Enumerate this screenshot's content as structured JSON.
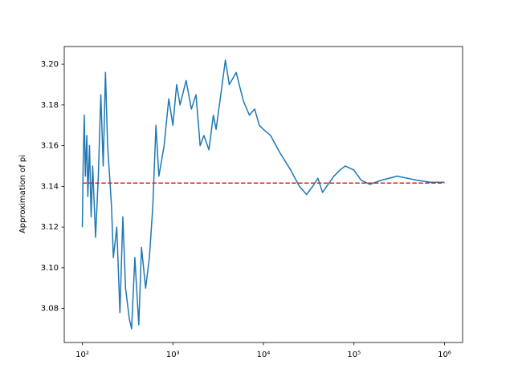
{
  "chart_data": {
    "type": "line",
    "ylabel": "Approximation of pi",
    "xscale": "log",
    "xlim": [
      63.1,
      1585000
    ],
    "xticks": [
      {
        "value": 100,
        "label": "10²"
      },
      {
        "value": 1000,
        "label": "10³"
      },
      {
        "value": 10000,
        "label": "10⁴"
      },
      {
        "value": 100000,
        "label": "10⁵"
      },
      {
        "value": 1000000,
        "label": "10⁶"
      }
    ],
    "ylim": [
      3.0633,
      3.2087
    ],
    "yticks": [
      3.08,
      {
        "value": 3.1,
        "label": "3.10"
      },
      3.12,
      3.14,
      3.16,
      3.18,
      {
        "value": 3.2,
        "label": "3.20"
      }
    ],
    "series": [
      {
        "color": "#1f77b4",
        "linestyle": "solid",
        "x": [
          100,
          102,
          105,
          108,
          112,
          115,
          120,
          125,
          130,
          140,
          150,
          160,
          170,
          180,
          190,
          200,
          210,
          220,
          240,
          260,
          280,
          300,
          330,
          350,
          380,
          420,
          450,
          500,
          550,
          600,
          650,
          700,
          800,
          900,
          1000,
          1100,
          1200,
          1400,
          1600,
          1800,
          2000,
          2200,
          2500,
          2800,
          3000,
          3500,
          3800,
          4200,
          5000,
          6000,
          7000,
          8000,
          9000,
          10000,
          12000,
          15000,
          20000,
          25000,
          30000,
          35000,
          40000,
          45000,
          50000,
          60000,
          70000,
          80000,
          100000,
          120000,
          150000,
          200000,
          300000,
          500000,
          700000,
          1000000
        ],
        "values": [
          3.12,
          3.15,
          3.175,
          3.145,
          3.165,
          3.135,
          3.16,
          3.125,
          3.15,
          3.115,
          3.145,
          3.185,
          3.15,
          3.196,
          3.16,
          3.145,
          3.13,
          3.105,
          3.12,
          3.078,
          3.125,
          3.09,
          3.075,
          3.07,
          3.105,
          3.072,
          3.11,
          3.09,
          3.105,
          3.13,
          3.17,
          3.145,
          3.16,
          3.183,
          3.17,
          3.19,
          3.18,
          3.192,
          3.178,
          3.185,
          3.16,
          3.165,
          3.158,
          3.175,
          3.168,
          3.19,
          3.202,
          3.19,
          3.196,
          3.182,
          3.175,
          3.178,
          3.17,
          3.168,
          3.165,
          3.157,
          3.148,
          3.14,
          3.136,
          3.14,
          3.144,
          3.137,
          3.14,
          3.145,
          3.148,
          3.15,
          3.148,
          3.143,
          3.141,
          3.143,
          3.145,
          3.143,
          3.142,
          3.142
        ]
      },
      {
        "color": "#d62728",
        "linestyle": "dashed",
        "x": [
          100,
          1000000
        ],
        "values": [
          3.14159,
          3.14159
        ]
      }
    ]
  }
}
